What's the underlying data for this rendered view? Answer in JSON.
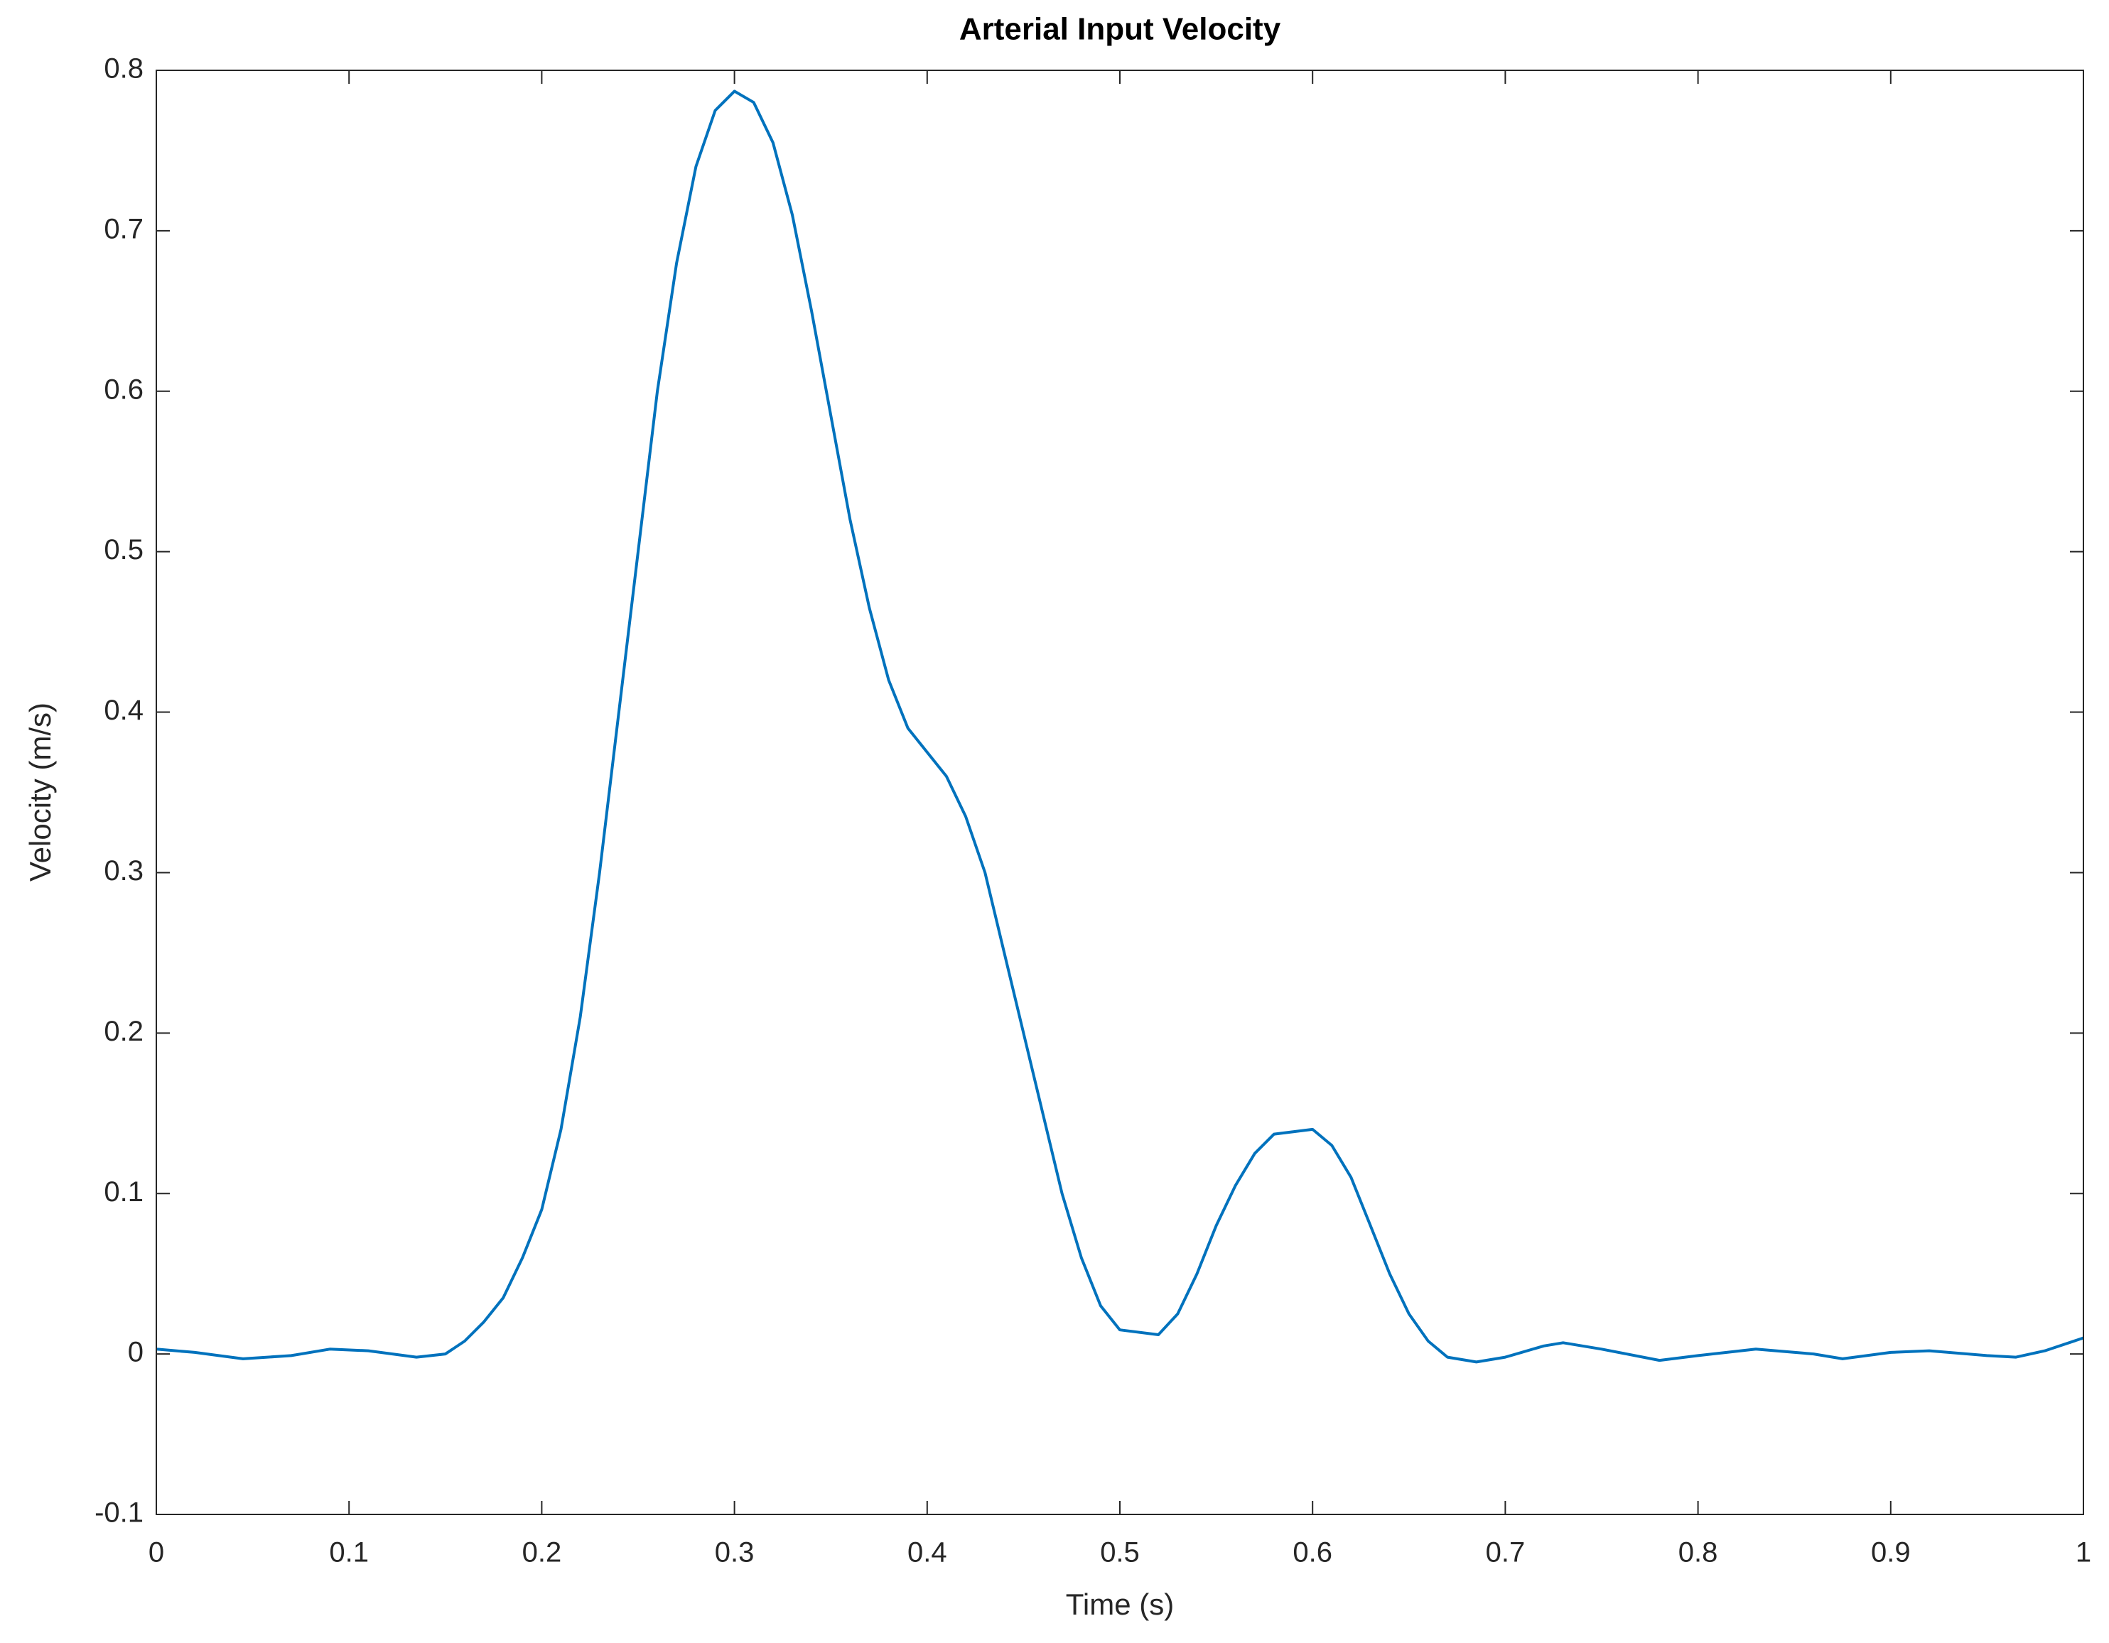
{
  "chart_data": {
    "type": "line",
    "title": "Arterial Input Velocity",
    "x_label": "Time (s)",
    "y_label": "Velocity (m/s)",
    "x": [
      0,
      0.02,
      0.045,
      0.07,
      0.09,
      0.11,
      0.135,
      0.15,
      0.16,
      0.17,
      0.18,
      0.19,
      0.2,
      0.21,
      0.22,
      0.23,
      0.24,
      0.25,
      0.26,
      0.27,
      0.28,
      0.29,
      0.3,
      0.31,
      0.32,
      0.33,
      0.34,
      0.35,
      0.36,
      0.37,
      0.38,
      0.39,
      0.4,
      0.41,
      0.42,
      0.43,
      0.44,
      0.45,
      0.46,
      0.47,
      0.48,
      0.49,
      0.5,
      0.52,
      0.53,
      0.54,
      0.55,
      0.56,
      0.57,
      0.58,
      0.6,
      0.61,
      0.62,
      0.63,
      0.64,
      0.65,
      0.66,
      0.67,
      0.685,
      0.7,
      0.72,
      0.73,
      0.75,
      0.78,
      0.8,
      0.83,
      0.86,
      0.875,
      0.9,
      0.92,
      0.95,
      0.965,
      0.98,
      1.0
    ],
    "values": [
      0.003,
      0.001,
      -0.003,
      -0.001,
      0.003,
      0.002,
      -0.002,
      0.0,
      0.008,
      0.02,
      0.035,
      0.06,
      0.09,
      0.14,
      0.21,
      0.3,
      0.4,
      0.5,
      0.6,
      0.68,
      0.74,
      0.775,
      0.787,
      0.78,
      0.755,
      0.71,
      0.65,
      0.585,
      0.52,
      0.465,
      0.42,
      0.39,
      0.375,
      0.36,
      0.335,
      0.3,
      0.25,
      0.2,
      0.15,
      0.1,
      0.06,
      0.03,
      0.015,
      0.012,
      0.025,
      0.05,
      0.08,
      0.105,
      0.125,
      0.137,
      0.14,
      0.13,
      0.11,
      0.08,
      0.05,
      0.025,
      0.008,
      -0.002,
      -0.005,
      -0.002,
      0.005,
      0.007,
      0.003,
      -0.004,
      -0.001,
      0.003,
      0.0,
      -0.003,
      0.001,
      0.002,
      -0.001,
      -0.002,
      0.002,
      0.01
    ],
    "color": "#0072bd",
    "xlim": [
      0,
      1
    ],
    "xticks": [
      0,
      0.1,
      0.2,
      0.3,
      0.4,
      0.5,
      0.6,
      0.7,
      0.8,
      0.9,
      1
    ],
    "ylim": [
      -0.1,
      0.8
    ],
    "yticks": [
      -0.1,
      0,
      0.1,
      0.2,
      0.3,
      0.4,
      0.5,
      0.6,
      0.7,
      0.8
    ],
    "grid": false
  }
}
